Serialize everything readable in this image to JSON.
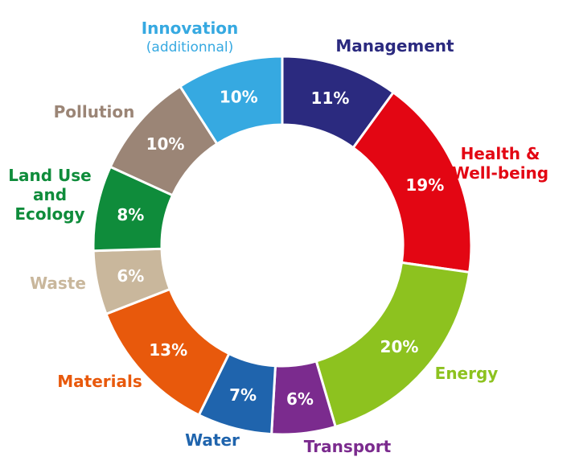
{
  "chart_data": {
    "type": "pie",
    "variant": "donut",
    "title": "",
    "unit": "%",
    "legend": "none (labels placed outside each slice)",
    "slices": [
      {
        "label": "Management",
        "value": 11,
        "display": "11%",
        "color": "#2b2a7f"
      },
      {
        "label": "Health & Well-being",
        "label_lines": [
          "Health &",
          "Well-being"
        ],
        "value": 19,
        "display": "19%",
        "color": "#e30613"
      },
      {
        "label": "Energy",
        "value": 20,
        "display": "20%",
        "color": "#8dc21f"
      },
      {
        "label": "Transport",
        "value": 6,
        "display": "6%",
        "color": "#7b2b8e"
      },
      {
        "label": "Water",
        "value": 7,
        "display": "7%",
        "color": "#1f64ad"
      },
      {
        "label": "Materials",
        "value": 13,
        "display": "13%",
        "color": "#e8590c"
      },
      {
        "label": "Waste",
        "value": 6,
        "display": "6%",
        "color": "#c9b79c"
      },
      {
        "label": "Land Use and Ecology",
        "label_lines": [
          "Land Use",
          "and",
          "Ecology"
        ],
        "value": 8,
        "display": "8%",
        "color": "#0f8c3b"
      },
      {
        "label": "Pollution",
        "value": 10,
        "display": "10%",
        "color": "#9b8576"
      },
      {
        "label": "Innovation (additionnal)",
        "label_lines": [
          "Innovation"
        ],
        "sublabel": "(additionnal)",
        "value": 10,
        "display": "10%",
        "color": "#36a9e1"
      }
    ]
  }
}
